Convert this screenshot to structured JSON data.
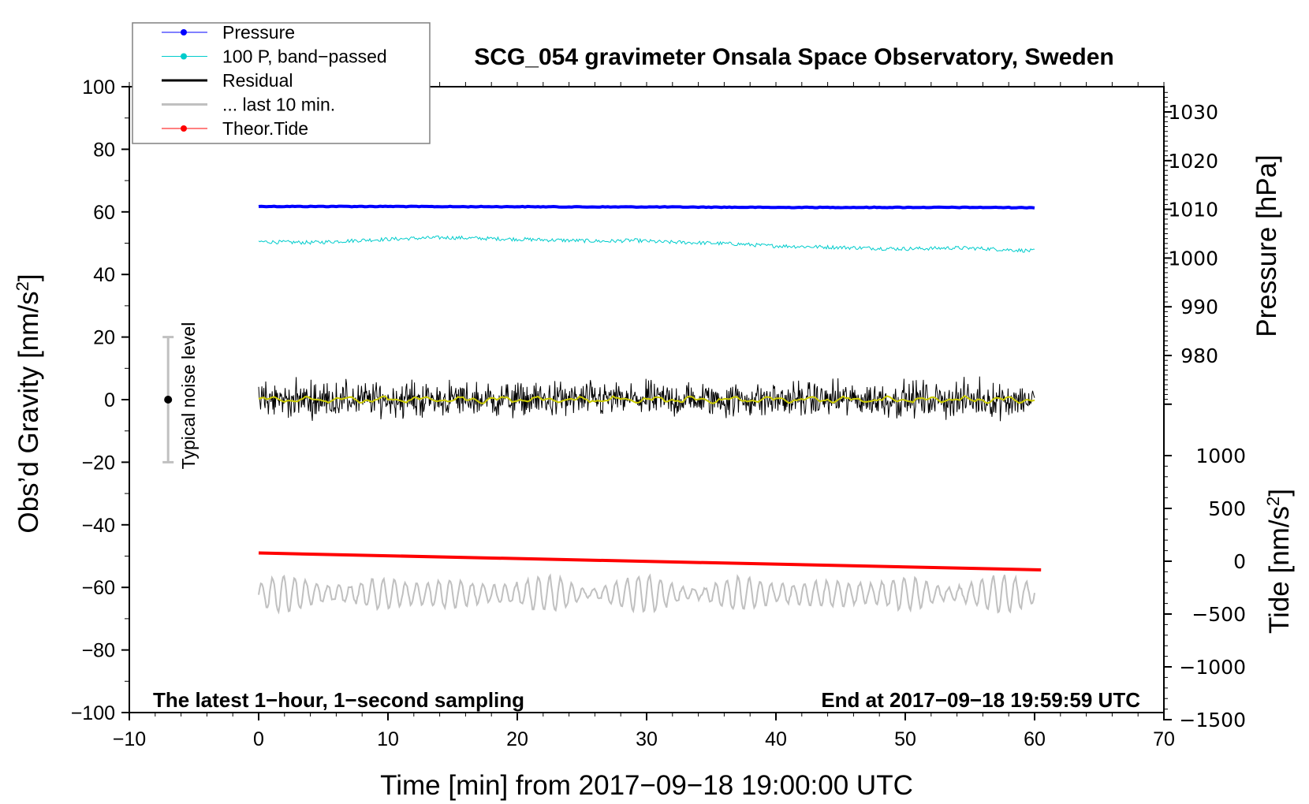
{
  "chart_data": {
    "type": "line",
    "title": "SCG_054 gravimeter Onsala Space Observatory, Sweden",
    "xlabel": "Time [min] from 2017−09−18 19:00:00 UTC",
    "ylabel": "Obs’d Gravity [nm/s",
    "ylabel_sup": "2",
    "ylabel_close": "]",
    "y2label": "Pressure [hPa]",
    "y3label": "Tide [nm/s",
    "y3label_sup": "2",
    "y3label_close": "]",
    "xlim": [
      -10,
      70
    ],
    "ylim": [
      -100,
      100
    ],
    "pressure_lim": [
      970,
      1035
    ],
    "tide_lim": [
      -1500,
      1300
    ],
    "xticks": [
      "−10",
      "0",
      "10",
      "20",
      "30",
      "40",
      "50",
      "60",
      "70"
    ],
    "xtick_values": [
      -10,
      0,
      10,
      20,
      30,
      40,
      50,
      60,
      70
    ],
    "yticks": [
      "100",
      "80",
      "60",
      "40",
      "20",
      "0",
      "−20",
      "−40",
      "−60",
      "−80",
      "−100"
    ],
    "ytick_values": [
      100,
      80,
      60,
      40,
      20,
      0,
      -20,
      -40,
      -60,
      -80,
      -100
    ],
    "pressure_ticks": [
      "1030",
      "1020",
      "1010",
      "1000",
      "990",
      "980"
    ],
    "pressure_tick_values": [
      1030,
      1020,
      1010,
      1000,
      990,
      980
    ],
    "tide_ticks": [
      "1000",
      "500",
      "0",
      "−500",
      "−1000",
      "−1500"
    ],
    "tide_tick_values": [
      1000,
      500,
      0,
      -500,
      -1000,
      -1500
    ],
    "legend": {
      "placement": "top-left",
      "entries": [
        {
          "label": "Pressure",
          "color": "#0000ff",
          "marker": true
        },
        {
          "label": "100 P, band−passed",
          "color": "#00cccc",
          "marker": true
        },
        {
          "label": "Residual",
          "color": "#000000",
          "marker": false
        },
        {
          "label": "... last 10 min.",
          "color": "#c0c0c0",
          "marker": false
        },
        {
          "label": "Theor.Tide",
          "color": "#ff0000",
          "marker": true
        }
      ]
    },
    "series": [
      {
        "name": "Pressure",
        "axis": "pressure",
        "x_range": [
          0,
          60
        ],
        "values_hpa": [
          1010.6,
          1010.6,
          1010.6,
          1010.55,
          1010.55,
          1010.5,
          1010.5,
          1010.45,
          1010.4,
          1010.4,
          1010.4,
          1010.4,
          1010.35
        ]
      },
      {
        "name": "100 P, band-passed",
        "axis": "gravity",
        "x_range": [
          0,
          60
        ],
        "values": [
          50.5,
          50.3,
          50.2,
          50.6,
          51.0,
          51.3,
          51.6,
          51.8,
          51.6,
          51.4,
          51.2,
          51.0,
          50.8,
          50.6,
          50.9,
          50.4,
          50.2,
          50.0,
          49.7,
          49.2,
          49.0,
          48.8,
          48.6,
          48.4,
          48.2,
          48.3,
          48.5,
          48.3,
          47.9,
          47.5
        ]
      },
      {
        "name": "Residual",
        "axis": "gravity",
        "x_range": [
          0,
          60
        ],
        "mean": 0,
        "noise_amplitude": 5,
        "points": 1200
      },
      {
        "name": "Residual smoothed",
        "color": "#cccc00",
        "axis": "gravity",
        "x_range": [
          0,
          60
        ],
        "mean": 0,
        "amplitude": 1
      },
      {
        "name": "... last 10 min.",
        "axis": "gravity",
        "x_range": [
          0,
          60
        ],
        "mean": -62,
        "amplitude": 4.5,
        "cycles": 70
      },
      {
        "name": "Theor.Tide",
        "axis": "tide",
        "x_range": [
          0,
          60.5
        ],
        "values": [
          78,
          -82
        ]
      }
    ],
    "noise_bar": {
      "label": "Typical noise level",
      "x": -7,
      "center": 0,
      "range": [
        -20,
        20
      ]
    },
    "annotations": {
      "bottom_left": "The latest 1−hour, 1−second sampling",
      "bottom_right": "End at 2017−09−18 19:59:59 UTC"
    },
    "grid": false
  }
}
